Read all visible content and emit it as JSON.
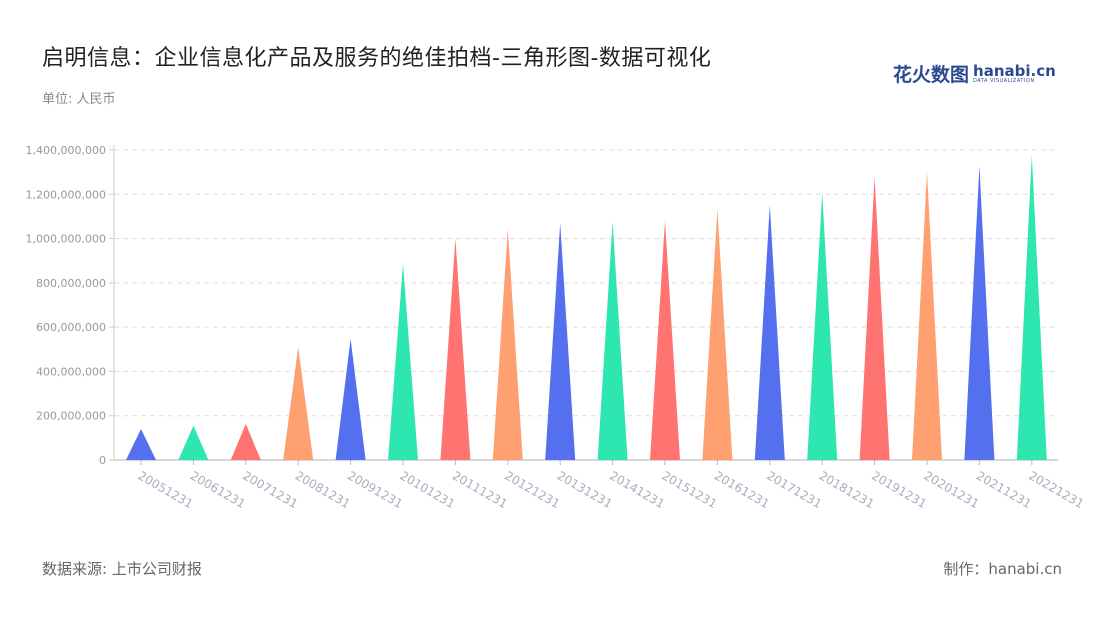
{
  "header": {
    "title": "启明信息：企业信息化产品及服务的绝佳拍档-三角形图-数据可视化",
    "unit": "单位: 人民币",
    "logo_cn": "花火数图",
    "logo_en": "hanabi.cn",
    "logo_sub": "DATA VISUALIZATION"
  },
  "footer": {
    "source": "数据来源: 上市公司财报",
    "maker": "制作：hanabi.cn"
  },
  "colors": [
    "#5470ee",
    "#2ee6b0",
    "#ff7370",
    "#ffa070"
  ],
  "chart_data": {
    "type": "bar",
    "subtype": "triangle",
    "title": "启明信息：企业信息化产品及服务的绝佳拍档-三角形图-数据可视化",
    "xlabel": "",
    "ylabel": "单位: 人民币",
    "ylim": [
      0,
      1400000000
    ],
    "yticks": [
      "0",
      "200,000,000",
      "400,000,000",
      "600,000,000",
      "800,000,000",
      "1,000,000,000",
      "1,200,000,000",
      "1,400,000,000"
    ],
    "grid": true,
    "legend": null,
    "categories": [
      "20051231",
      "20061231",
      "20071231",
      "20081231",
      "20091231",
      "20101231",
      "20111231",
      "20121231",
      "20131231",
      "20141231",
      "20151231",
      "20161231",
      "20171231",
      "20181231",
      "20191231",
      "20201231",
      "20211231",
      "20221231"
    ],
    "values": [
      140000000,
      155000000,
      163000000,
      510000000,
      547000000,
      885000000,
      1000000000,
      1043000000,
      1070000000,
      1075000000,
      1080000000,
      1133000000,
      1150000000,
      1205000000,
      1278000000,
      1300000000,
      1328000000,
      1378000000
    ]
  }
}
